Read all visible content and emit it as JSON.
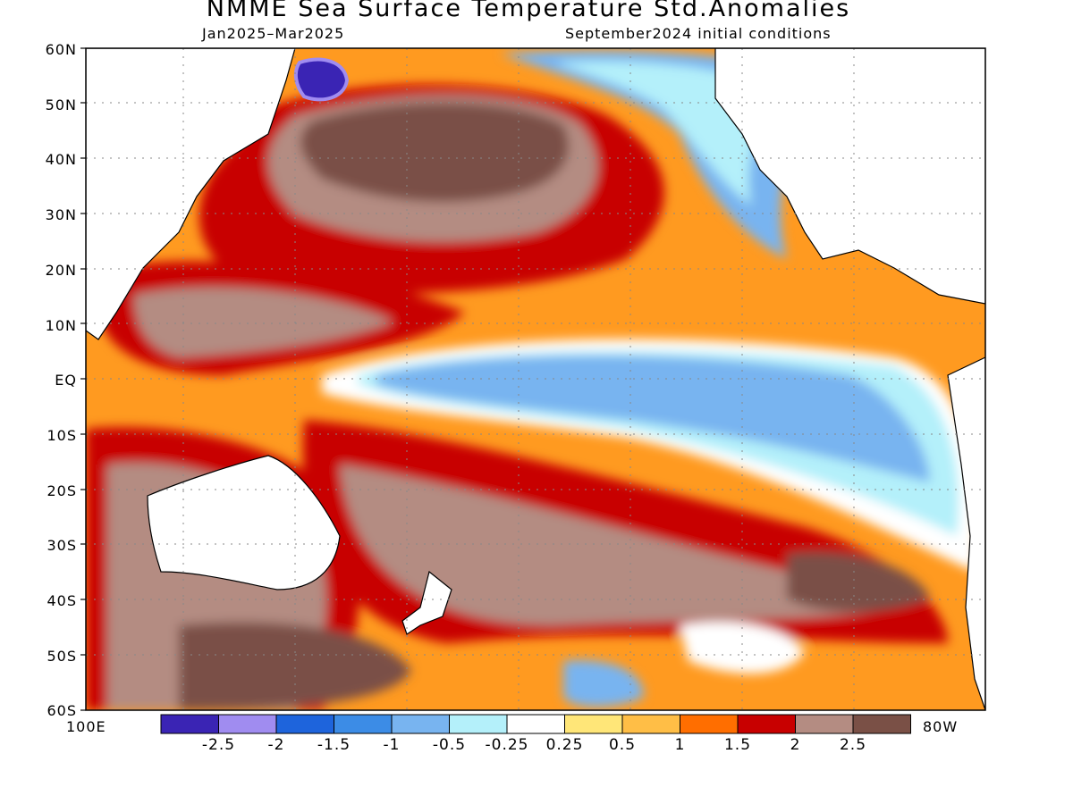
{
  "title": "NMME Sea Surface Temperature Std.Anomalies",
  "subtitle_left": "Jan2025–Mar2025",
  "subtitle_right": "September2024 initial conditions",
  "lat_labels": [
    "60N",
    "50N",
    "40N",
    "30N",
    "20N",
    "10N",
    "EQ",
    "10S",
    "20S",
    "30S",
    "40S",
    "50S",
    "60S"
  ],
  "lon_labels": {
    "left": "100E",
    "right": "80W"
  },
  "legend": {
    "colors": [
      "#3a24b4",
      "#a08cf0",
      "#1e64dc",
      "#3c8ce6",
      "#78b4f0",
      "#b4f0fa",
      "#ffffff",
      "#ffe678",
      "#ffbe46",
      "#ff6e00",
      "#c80000",
      "#b48c82",
      "#7a5046"
    ],
    "labels": [
      "-2.5",
      "-2",
      "-1.5",
      "-1",
      "-0.5",
      "-0.25",
      "0.25",
      "0.5",
      "1",
      "1.5",
      "2",
      "2.5"
    ]
  },
  "land_color": "#ffffff",
  "coast_color": "#000000"
}
